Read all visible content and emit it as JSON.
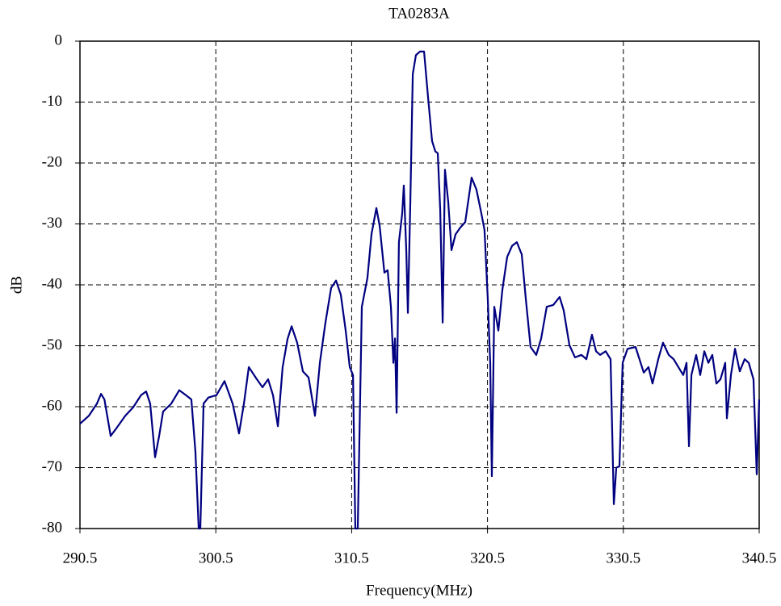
{
  "chart_data": {
    "type": "line",
    "title": "TA0283A",
    "x_label": "Frequency(MHz)",
    "y_label": "dB",
    "color": "#000080",
    "grid": true,
    "xlim": [
      290.5,
      340.5
    ],
    "xticks": [
      290.5,
      300.5,
      310.5,
      320.5,
      330.5,
      340.5
    ],
    "ylim": [
      -80,
      0
    ],
    "yticks": [
      -80,
      -70,
      -60,
      -50,
      -40,
      -30,
      -20,
      -10,
      0
    ],
    "x": [
      290.5,
      291.15,
      291.75,
      292.05,
      292.3,
      292.76,
      293.23,
      293.83,
      294.42,
      295.0,
      295.37,
      295.67,
      296.03,
      296.33,
      296.62,
      297.22,
      297.81,
      298.29,
      298.7,
      299.0,
      299.24,
      299.36,
      299.6,
      299.95,
      300.55,
      301.14,
      301.74,
      302.21,
      302.57,
      302.93,
      303.52,
      303.94,
      304.35,
      304.71,
      305.07,
      305.42,
      305.78,
      306.08,
      306.49,
      306.91,
      307.33,
      307.8,
      308.16,
      308.57,
      308.99,
      309.35,
      309.7,
      310.06,
      310.36,
      310.6,
      310.77,
      310.95,
      311.25,
      311.66,
      311.96,
      312.32,
      312.56,
      312.91,
      313.15,
      313.39,
      313.57,
      313.69,
      313.81,
      313.98,
      314.22,
      314.34,
      314.52,
      314.64,
      314.82,
      315.0,
      315.23,
      315.53,
      315.83,
      316.12,
      316.42,
      316.66,
      316.84,
      317.02,
      317.2,
      317.37,
      317.61,
      317.85,
      318.15,
      318.5,
      318.86,
      319.33,
      319.69,
      320.05,
      320.28,
      320.52,
      320.7,
      320.82,
      321.0,
      321.3,
      321.59,
      321.95,
      322.31,
      322.66,
      323.02,
      323.32,
      323.67,
      324.09,
      324.45,
      324.86,
      325.34,
      325.81,
      326.11,
      326.53,
      326.94,
      327.42,
      327.78,
      328.19,
      328.49,
      328.79,
      329.2,
      329.56,
      329.8,
      329.98,
      330.21,
      330.45,
      330.81,
      331.4,
      332.0,
      332.35,
      332.65,
      333.07,
      333.42,
      333.84,
      334.2,
      334.55,
      334.91,
      335.15,
      335.33,
      335.51,
      335.86,
      336.16,
      336.46,
      336.76,
      337.05,
      337.35,
      337.65,
      338.0,
      338.12,
      338.42,
      338.72,
      339.07,
      339.43,
      339.73,
      340.08,
      340.32,
      340.5
    ],
    "values": [
      -62.8,
      -61.5,
      -59.5,
      -57.9,
      -58.8,
      -64.8,
      -63.4,
      -61.5,
      -60.1,
      -58.1,
      -57.5,
      -59.5,
      -68.3,
      -64.8,
      -60.8,
      -59.5,
      -57.3,
      -58.1,
      -58.8,
      -67.4,
      -80,
      -80,
      -59.5,
      -58.5,
      -58.1,
      -55.8,
      -59.5,
      -64.4,
      -59.5,
      -53.5,
      -55.5,
      -56.8,
      -55.5,
      -58.1,
      -63.2,
      -53.5,
      -48.9,
      -46.8,
      -49.5,
      -54.2,
      -55.2,
      -61.5,
      -52.8,
      -46.2,
      -40.5,
      -39.3,
      -41.6,
      -47.5,
      -53.5,
      -54.8,
      -80,
      -80,
      -43.6,
      -38.9,
      -31.7,
      -27.4,
      -30.3,
      -38,
      -37.6,
      -43.6,
      -52.8,
      -48.8,
      -61,
      -33,
      -28.3,
      -23.7,
      -34.3,
      -44.6,
      -26.4,
      -5.4,
      -2.3,
      -1.7,
      -1.7,
      -9.1,
      -16.4,
      -18.1,
      -18.4,
      -27.7,
      -46.2,
      -21.1,
      -26.4,
      -34.3,
      -31.7,
      -30.6,
      -29.7,
      -22.4,
      -24.4,
      -28.3,
      -31,
      -42.3,
      -52.8,
      -71.4,
      -43.6,
      -47.5,
      -40.9,
      -35.4,
      -33.6,
      -33,
      -35,
      -42.3,
      -50.2,
      -51.5,
      -48.8,
      -43.6,
      -43.3,
      -42,
      -44.2,
      -49.9,
      -51.9,
      -51.5,
      -52.2,
      -48.2,
      -50.9,
      -51.5,
      -50.9,
      -52.2,
      -76,
      -70,
      -69.8,
      -52.8,
      -50.5,
      -50.2,
      -54.4,
      -53.5,
      -56.2,
      -52.2,
      -49.5,
      -51.5,
      -52.2,
      -53.5,
      -54.8,
      -52.8,
      -66.5,
      -54.8,
      -51.5,
      -54.8,
      -50.9,
      -52.8,
      -51.5,
      -56.2,
      -55.5,
      -52.8,
      -61.9,
      -54.8,
      -50.5,
      -54.2,
      -52.2,
      -52.8,
      -55.5,
      -71.1,
      -58.8
    ]
  }
}
